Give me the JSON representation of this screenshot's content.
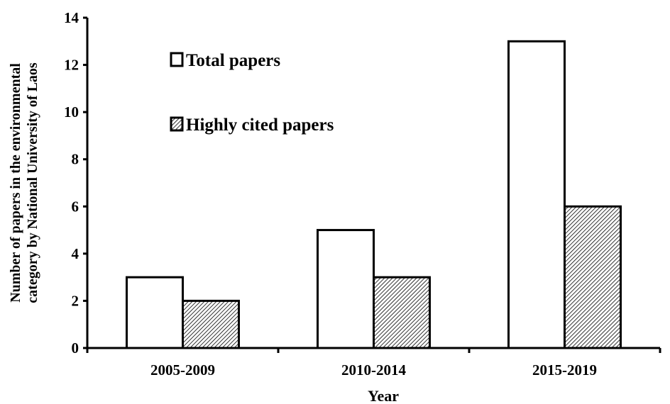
{
  "chart_data": {
    "type": "bar",
    "title": "",
    "xlabel": "Year",
    "ylabel_lines": [
      "Number of papers in the environmental",
      "category by National University of Laos"
    ],
    "categories": [
      "2005-2009",
      "2010-2014",
      "2015-2019"
    ],
    "series": [
      {
        "name": "Total papers",
        "values": [
          3,
          5,
          13
        ],
        "fill": "solid-white"
      },
      {
        "name": "Highly cited papers",
        "values": [
          2,
          3,
          6
        ],
        "fill": "diagonal-hatch"
      }
    ],
    "ylim": [
      0,
      14
    ],
    "yticks": [
      "0",
      "2",
      "4",
      "6",
      "8",
      "10",
      "12",
      "14"
    ],
    "grid": false,
    "legend_position": "top-left",
    "colors": {
      "bar_stroke": "#000000",
      "bar_fill": "#ffffff",
      "hatch": "#000000"
    }
  }
}
